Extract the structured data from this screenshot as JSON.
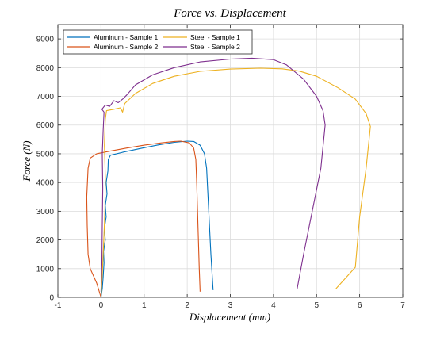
{
  "chart_data": {
    "type": "line",
    "title": "Force vs. Displacement",
    "xlabel": "Displacement (mm)",
    "ylabel": "Force (N)",
    "xlim": [
      -1,
      7
    ],
    "ylim": [
      0,
      9500
    ],
    "xticks": [
      -1,
      0,
      1,
      2,
      3,
      4,
      5,
      6,
      7
    ],
    "yticks": [
      0,
      1000,
      2000,
      3000,
      4000,
      5000,
      6000,
      7000,
      8000,
      9000
    ],
    "grid": true,
    "legend": {
      "position": "top-left",
      "columns": 2
    },
    "series": [
      {
        "name": "Aluminum - Sample 1",
        "color": "#0072BD",
        "points": [
          [
            0.0,
            0
          ],
          [
            0.03,
            300
          ],
          [
            0.05,
            700
          ],
          [
            0.07,
            1200
          ],
          [
            0.06,
            1600
          ],
          [
            0.1,
            2000
          ],
          [
            0.08,
            2400
          ],
          [
            0.12,
            2800
          ],
          [
            0.1,
            3200
          ],
          [
            0.14,
            3600
          ],
          [
            0.12,
            4000
          ],
          [
            0.16,
            4400
          ],
          [
            0.17,
            4800
          ],
          [
            0.22,
            4950
          ],
          [
            0.5,
            5050
          ],
          [
            0.9,
            5180
          ],
          [
            1.3,
            5300
          ],
          [
            1.7,
            5400
          ],
          [
            2.0,
            5440
          ],
          [
            2.15,
            5430
          ],
          [
            2.3,
            5300
          ],
          [
            2.4,
            5000
          ],
          [
            2.45,
            4500
          ],
          [
            2.5,
            3000
          ],
          [
            2.55,
            1500
          ],
          [
            2.6,
            250
          ]
        ]
      },
      {
        "name": "Aluminum - Sample 2",
        "color": "#D95319",
        "points": [
          [
            0.0,
            0
          ],
          [
            -0.1,
            500
          ],
          [
            -0.25,
            1000
          ],
          [
            -0.3,
            1500
          ],
          [
            -0.32,
            2500
          ],
          [
            -0.33,
            3500
          ],
          [
            -0.3,
            4500
          ],
          [
            -0.25,
            4850
          ],
          [
            -0.1,
            5000
          ],
          [
            0.2,
            5090
          ],
          [
            0.6,
            5200
          ],
          [
            1.0,
            5300
          ],
          [
            1.4,
            5380
          ],
          [
            1.7,
            5430
          ],
          [
            1.85,
            5440
          ],
          [
            2.05,
            5380
          ],
          [
            2.15,
            5200
          ],
          [
            2.2,
            4800
          ],
          [
            2.22,
            4000
          ],
          [
            2.25,
            2500
          ],
          [
            2.28,
            1000
          ],
          [
            2.3,
            200
          ]
        ]
      },
      {
        "name": "Steel - Sample 1",
        "color": "#EDB120",
        "points": [
          [
            0.0,
            0
          ],
          [
            0.03,
            800
          ],
          [
            0.06,
            1800
          ],
          [
            0.09,
            3000
          ],
          [
            0.1,
            4200
          ],
          [
            0.08,
            5300
          ],
          [
            0.1,
            6200
          ],
          [
            0.13,
            6500
          ],
          [
            0.3,
            6550
          ],
          [
            0.45,
            6600
          ],
          [
            0.5,
            6450
          ],
          [
            0.55,
            6750
          ],
          [
            0.8,
            7100
          ],
          [
            1.2,
            7450
          ],
          [
            1.7,
            7700
          ],
          [
            2.3,
            7870
          ],
          [
            3.0,
            7950
          ],
          [
            3.7,
            7980
          ],
          [
            4.2,
            7960
          ],
          [
            4.6,
            7880
          ],
          [
            5.0,
            7700
          ],
          [
            5.5,
            7300
          ],
          [
            5.9,
            6900
          ],
          [
            6.15,
            6400
          ],
          [
            6.25,
            5950
          ],
          [
            6.15,
            4500
          ],
          [
            6.0,
            2800
          ],
          [
            5.9,
            1050
          ],
          [
            5.45,
            300
          ]
        ]
      },
      {
        "name": "Steel - Sample 2",
        "color": "#7E2F8E",
        "points": [
          [
            0.0,
            200
          ],
          [
            0.02,
            1200
          ],
          [
            0.03,
            2500
          ],
          [
            0.04,
            3800
          ],
          [
            0.03,
            5000
          ],
          [
            0.05,
            5800
          ],
          [
            0.07,
            6450
          ],
          [
            0.02,
            6550
          ],
          [
            0.1,
            6700
          ],
          [
            0.2,
            6650
          ],
          [
            0.3,
            6850
          ],
          [
            0.4,
            6780
          ],
          [
            0.5,
            6900
          ],
          [
            0.6,
            7050
          ],
          [
            0.8,
            7400
          ],
          [
            1.2,
            7750
          ],
          [
            1.7,
            8000
          ],
          [
            2.3,
            8200
          ],
          [
            3.0,
            8300
          ],
          [
            3.5,
            8330
          ],
          [
            4.0,
            8280
          ],
          [
            4.3,
            8100
          ],
          [
            4.7,
            7600
          ],
          [
            5.0,
            7000
          ],
          [
            5.15,
            6500
          ],
          [
            5.2,
            6000
          ],
          [
            5.1,
            4500
          ],
          [
            4.9,
            3000
          ],
          [
            4.7,
            1500
          ],
          [
            4.55,
            300
          ]
        ]
      }
    ]
  }
}
